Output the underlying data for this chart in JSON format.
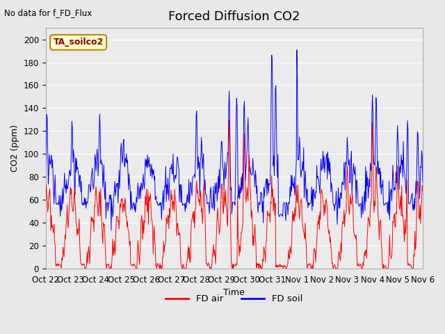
{
  "title": "Forced Diffusion CO2",
  "top_left_text": "No data for f_FD_Flux",
  "annotation_box": "TA_soilco2",
  "xlabel": "Time",
  "ylabel": "CO2 (ppm)",
  "ylim": [
    0,
    210
  ],
  "yticks": [
    0,
    20,
    40,
    60,
    80,
    100,
    120,
    140,
    160,
    180,
    200
  ],
  "xtick_labels": [
    "Oct 22",
    "Oct 23",
    "Oct 24",
    "Oct 25",
    "Oct 26",
    "Oct 27",
    "Oct 28",
    "Oct 29",
    "Oct 30",
    "Oct 31",
    "Nov 1",
    "Nov 2",
    "Nov 3",
    "Nov 4",
    "Nov 5",
    "Nov 6"
  ],
  "background_color": "#e8e8e8",
  "plot_bg_color": "#ebebeb",
  "grid_color": "#ffffff",
  "line_color_air": "#ff0000",
  "line_color_soil": "#0000ff",
  "legend_labels": [
    "FD air",
    "FD soil"
  ],
  "title_fontsize": 13,
  "label_fontsize": 9,
  "tick_fontsize": 8.5,
  "linewidth": 0.7
}
